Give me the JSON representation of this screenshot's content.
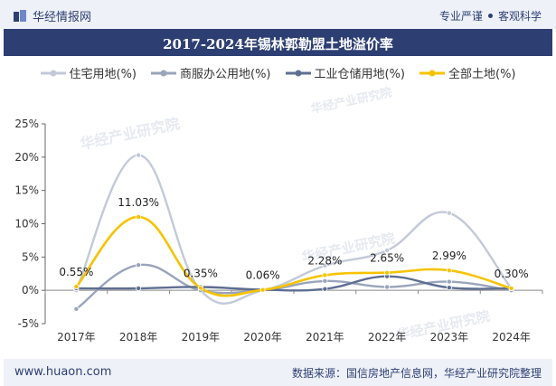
{
  "header": {
    "brand": "华经情报网",
    "tag1": "专业严谨",
    "tag2": "客观科学"
  },
  "footer": {
    "site": "www.huaon.com",
    "source": "数据来源：国信房地产信息网，华经产业研究院整理"
  },
  "watermark": "华经产业研究院",
  "colors": {
    "residential": "#c3c9d8",
    "commercial": "#9aa4bb",
    "industrial": "#5d6e91",
    "total": "#f5c300",
    "title_bg": "#2d3f72"
  },
  "chart_data": {
    "type": "line",
    "title": "2017-2024年锡林郭勒盟土地溢价率",
    "xlabel": "",
    "ylabel": "",
    "categories": [
      "2017年",
      "2018年",
      "2019年",
      "2020年",
      "2021年",
      "2022年",
      "2023年",
      "2024年"
    ],
    "ylim": [
      -5,
      25
    ],
    "yticks": [
      "-5%",
      "0%",
      "5%",
      "10%",
      "15%",
      "20%",
      "25%"
    ],
    "ytick_values": [
      -5,
      0,
      5,
      10,
      15,
      20,
      25
    ],
    "grid": false,
    "legend_position": "top",
    "series": [
      {
        "name": "住宅用地(%)",
        "values": [
          0.0,
          20.3,
          0.0,
          0.0,
          3.7,
          6.0,
          11.6,
          0.3
        ]
      },
      {
        "name": "商服办公用地(%)",
        "values": [
          -2.8,
          3.8,
          0.0,
          0.0,
          1.4,
          0.5,
          1.3,
          0.0
        ]
      },
      {
        "name": "工业仓储用地(%)",
        "values": [
          0.3,
          0.3,
          0.5,
          0.1,
          0.2,
          2.1,
          0.4,
          0.3
        ]
      },
      {
        "name": "全部土地(%)",
        "values": [
          0.55,
          11.03,
          0.35,
          0.06,
          2.28,
          2.65,
          2.99,
          0.3
        ]
      }
    ],
    "data_labels": [
      "0.55%",
      "11.03%",
      "0.35%",
      "0.06%",
      "2.28%",
      "2.65%",
      "2.99%",
      "0.30%"
    ]
  }
}
